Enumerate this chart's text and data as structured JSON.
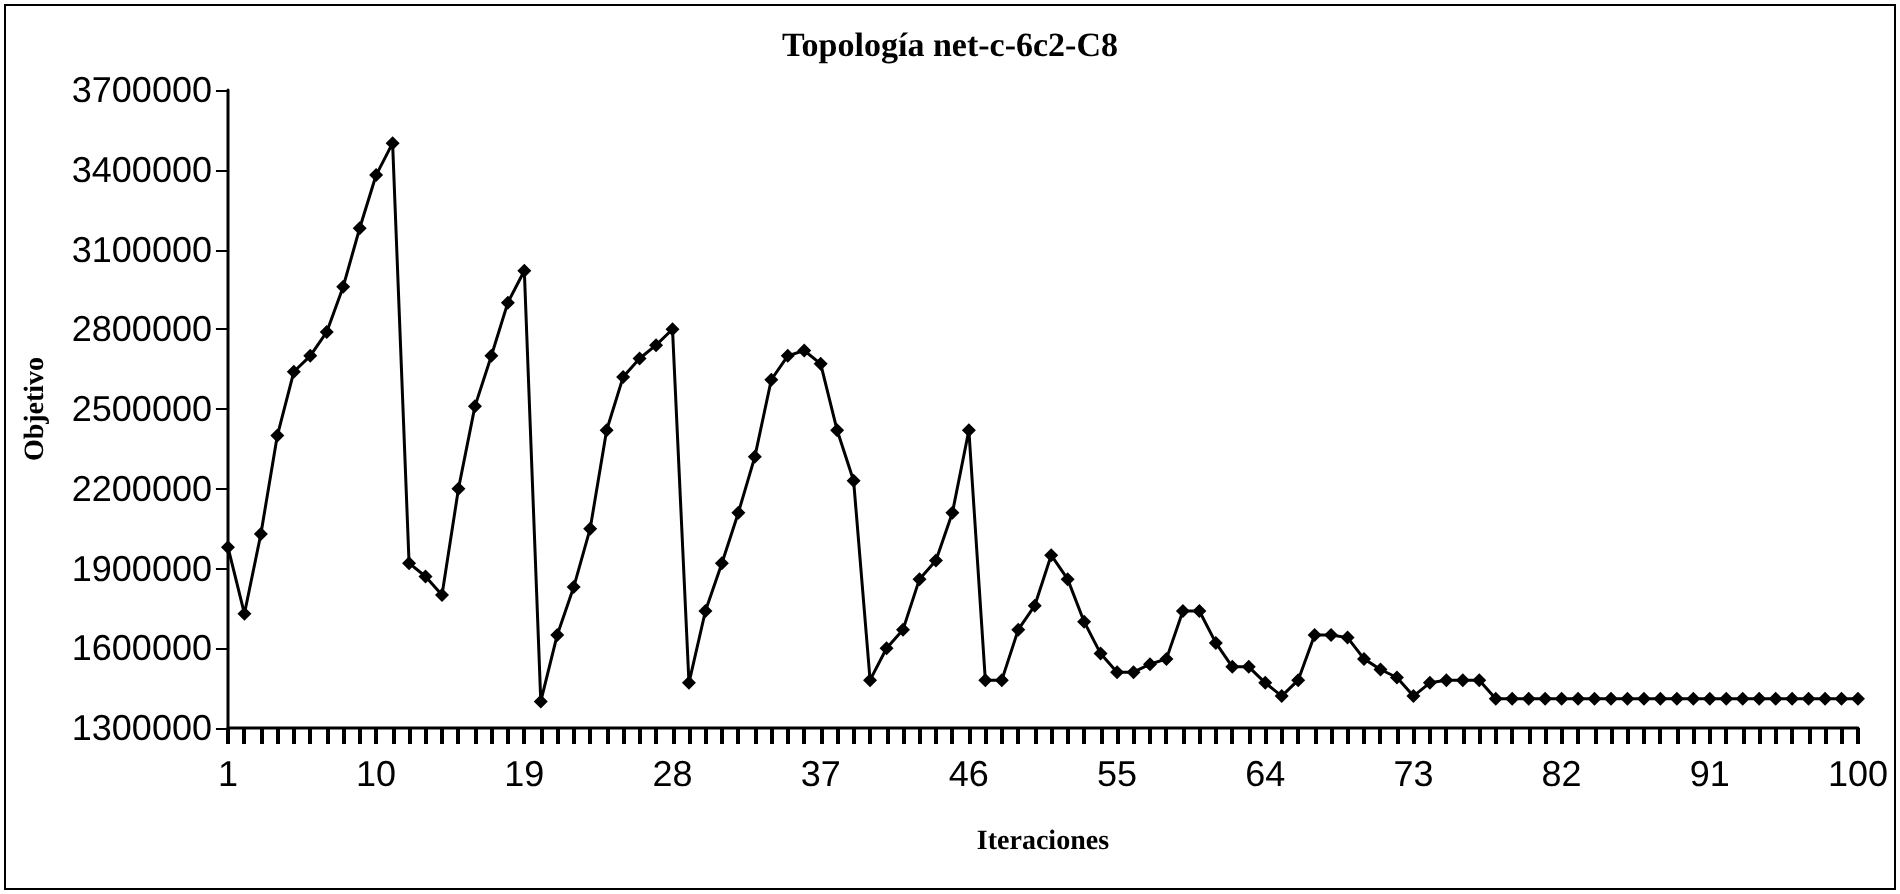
{
  "chart_data": {
    "type": "line",
    "title": "Topología net-c-6c2-C8",
    "xlabel": "Iteraciones",
    "ylabel": "Objetivo",
    "categories": [
      "1",
      null,
      null,
      null,
      null,
      null,
      null,
      null,
      null,
      "10",
      null,
      null,
      null,
      null,
      null,
      null,
      null,
      null,
      "19",
      null,
      null,
      null,
      null,
      null,
      null,
      null,
      null,
      "28",
      null,
      null,
      null,
      null,
      null,
      null,
      null,
      null,
      "37",
      null,
      null,
      null,
      null,
      null,
      null,
      null,
      null,
      "46",
      null,
      null,
      null,
      null,
      null,
      null,
      null,
      null,
      "55",
      null,
      null,
      null,
      null,
      null,
      null,
      null,
      null,
      "64",
      null,
      null,
      null,
      null,
      null,
      null,
      null,
      null,
      "73",
      null,
      null,
      null,
      null,
      null,
      null,
      null,
      null,
      "82",
      null,
      null,
      null,
      null,
      null,
      null,
      null,
      null,
      "91",
      null,
      null,
      null,
      null,
      null,
      null,
      null,
      null,
      "100"
    ],
    "series": [
      {
        "color": "#000000",
        "values": [
          1980000,
          1730000,
          2030000,
          2400000,
          2640000,
          2700000,
          2790000,
          2960000,
          3180000,
          3380000,
          3500000,
          1920000,
          1870000,
          1800000,
          2200000,
          2510000,
          2700000,
          2900000,
          3020000,
          1400000,
          1650000,
          1830000,
          2050000,
          2420000,
          2620000,
          2690000,
          2740000,
          2800000,
          1470000,
          1740000,
          1920000,
          2110000,
          2320000,
          2610000,
          2700000,
          2720000,
          2670000,
          2420000,
          2230000,
          1480000,
          1600000,
          1670000,
          1860000,
          1930000,
          2110000,
          2420000,
          1480000,
          1480000,
          1670000,
          1760000,
          1950000,
          1860000,
          1700000,
          1580000,
          1510000,
          1510000,
          1540000,
          1560000,
          1740000,
          1740000,
          1620000,
          1530000,
          1530000,
          1470000,
          1420000,
          1480000,
          1650000,
          1650000,
          1640000,
          1560000,
          1520000,
          1490000,
          1420000,
          1470000,
          1480000,
          1480000,
          1480000,
          1410000,
          1410000,
          1410000,
          1410000,
          1410000,
          1410000,
          1410000,
          1410000,
          1410000,
          1410000,
          1410000,
          1410000,
          1410000,
          1410000,
          1410000,
          1410000,
          1410000,
          1410000,
          1410000,
          1410000,
          1410000,
          1410000,
          1410000
        ]
      }
    ],
    "ylim": [
      1300000,
      3700000
    ],
    "yticks": [
      1300000,
      1600000,
      1900000,
      2200000,
      2500000,
      2800000,
      3100000,
      3400000,
      3700000
    ],
    "grid": false,
    "marker": "diamond",
    "line_style": "solid"
  }
}
